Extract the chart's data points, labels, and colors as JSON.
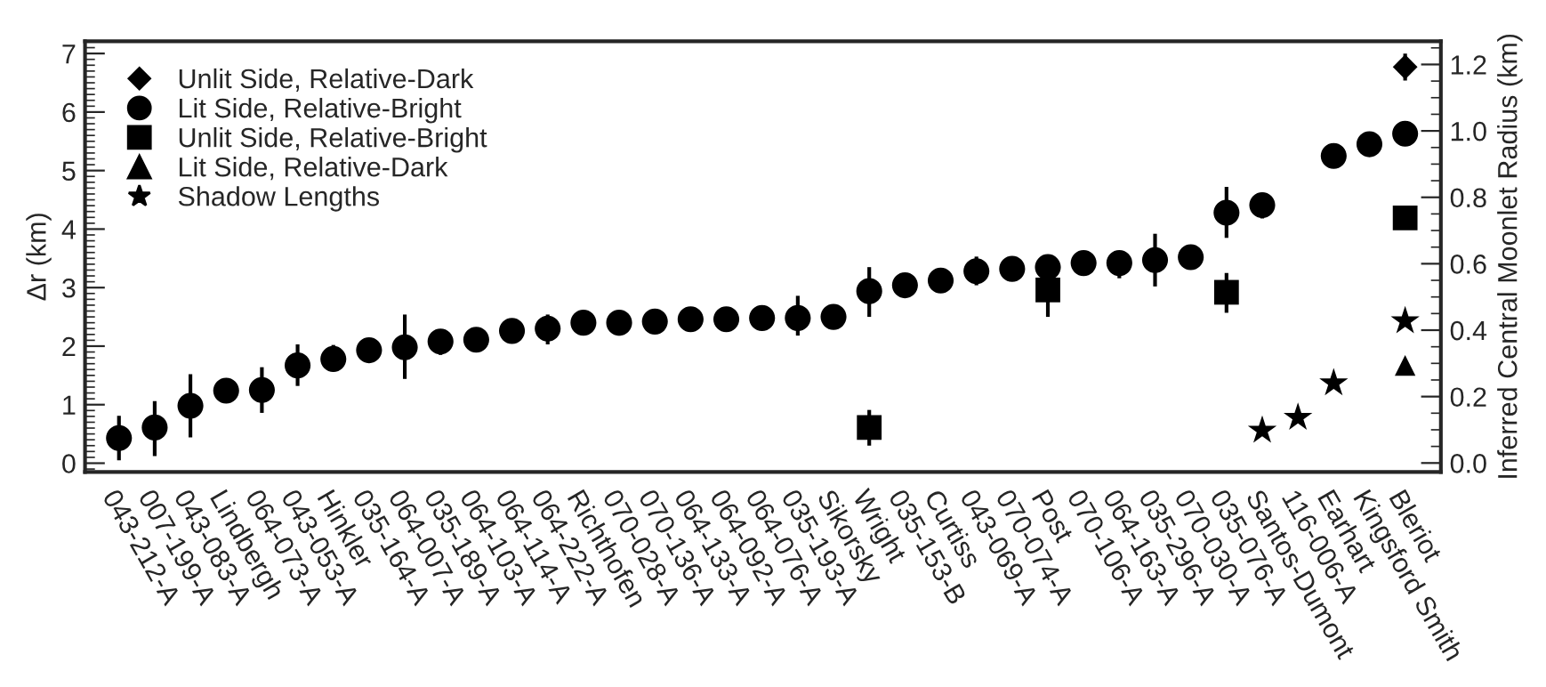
{
  "chart_data": {
    "type": "scatter",
    "ylabel": "Δr (km)",
    "y2label": "Inferred Central Moonlet Radius (km)",
    "categories": [
      "043-212-A",
      "007-199-A",
      "043-083-A",
      "Lindbergh",
      "064-073-A",
      "043-053-A",
      "Hinkler",
      "035-164-A",
      "064-007-A",
      "035-189-A",
      "064-103-A",
      "064-114-A",
      "064-222-A",
      "Richthofen",
      "070-028-A",
      "070-136-A",
      "064-133-A",
      "064-092-A",
      "064-076-A",
      "035-193-A",
      "Sikorsky",
      "Wright",
      "035-153-B",
      "Curtiss",
      "043-069-A",
      "070-074-A",
      "Post",
      "070-106-A",
      "064-163-A",
      "035-296-A",
      "070-030-A",
      "035-076-A",
      "Santos-Dumont",
      "116-006-A",
      "Earhart",
      "Kingsford Smith",
      "Bleriot"
    ],
    "ylim": [
      -0.15,
      7.21
    ],
    "yticks": [
      0,
      1,
      2,
      3,
      4,
      5,
      6,
      7
    ],
    "y2lim": [
      -0.027,
      1.27
    ],
    "y2ticks": [
      {
        "value": 0,
        "label": "0.0"
      },
      {
        "value": 0.2,
        "label": "0.2"
      },
      {
        "value": 0.4,
        "label": "0.4"
      },
      {
        "value": 0.6,
        "label": "0.6"
      },
      {
        "value": 0.8,
        "label": "0.8"
      },
      {
        "value": 1.0,
        "label": "1.0"
      },
      {
        "value": 1.2,
        "label": "1.2"
      }
    ],
    "legend": "top left",
    "grid": false,
    "series": [
      {
        "name": "Unlit Side, Relative-Dark",
        "color": "#000000",
        "marker": "diamond",
        "values": [
          null,
          null,
          null,
          null,
          null,
          null,
          null,
          null,
          null,
          null,
          null,
          null,
          null,
          null,
          null,
          null,
          null,
          null,
          null,
          null,
          null,
          null,
          null,
          null,
          null,
          null,
          null,
          null,
          null,
          null,
          null,
          null,
          null,
          null,
          null,
          null,
          6.77
        ],
        "errors": [
          null,
          null,
          null,
          null,
          null,
          null,
          null,
          null,
          null,
          null,
          null,
          null,
          null,
          null,
          null,
          null,
          null,
          null,
          null,
          null,
          null,
          null,
          null,
          null,
          null,
          null,
          null,
          null,
          null,
          null,
          null,
          null,
          null,
          null,
          null,
          null,
          [
            6.54,
            7.0
          ]
        ]
      },
      {
        "name": "Lit Side, Relative-Bright",
        "color": "#000000",
        "marker": "circle",
        "values": [
          0.43,
          0.61,
          0.98,
          1.24,
          1.25,
          1.67,
          1.78,
          1.93,
          1.98,
          2.08,
          2.11,
          2.26,
          2.3,
          2.4,
          2.4,
          2.42,
          2.46,
          2.46,
          2.48,
          2.48,
          2.5,
          2.94,
          3.04,
          3.12,
          3.28,
          3.32,
          3.35,
          3.42,
          3.42,
          3.47,
          3.52,
          4.28,
          4.41,
          null,
          5.25,
          5.45,
          5.63
        ],
        "errors": [
          [
            0.05,
            0.81
          ],
          [
            0.12,
            1.06
          ],
          [
            0.44,
            1.52
          ],
          null,
          [
            0.86,
            1.64
          ],
          [
            1.32,
            2.03
          ],
          [
            1.57,
            2.02
          ],
          null,
          [
            1.44,
            2.54
          ],
          [
            1.85,
            2.25
          ],
          null,
          null,
          [
            2.03,
            2.54
          ],
          null,
          [
            2.18,
            2.59
          ],
          null,
          null,
          null,
          null,
          [
            2.18,
            2.86
          ],
          [
            2.33,
            2.69
          ],
          [
            2.5,
            3.35
          ],
          null,
          null,
          [
            3.04,
            3.53
          ],
          null,
          null,
          null,
          [
            3.16,
            3.6
          ],
          [
            3.02,
            3.92
          ],
          null,
          [
            3.85,
            4.72
          ],
          [
            4.18,
            4.62
          ],
          null,
          null,
          null,
          null
        ]
      },
      {
        "name": "Unlit Side, Relative-Bright",
        "color": "#000000",
        "marker": "square",
        "values": [
          null,
          null,
          null,
          null,
          null,
          null,
          null,
          null,
          null,
          null,
          null,
          null,
          null,
          null,
          null,
          null,
          null,
          null,
          null,
          null,
          null,
          0.61,
          null,
          null,
          null,
          null,
          2.96,
          null,
          null,
          null,
          null,
          2.92,
          null,
          null,
          null,
          null,
          4.19
        ],
        "errors": [
          null,
          null,
          null,
          null,
          null,
          null,
          null,
          null,
          null,
          null,
          null,
          null,
          null,
          null,
          null,
          null,
          null,
          null,
          null,
          null,
          null,
          [
            0.3,
            0.91
          ],
          null,
          null,
          null,
          null,
          [
            2.5,
            2.96
          ],
          null,
          null,
          null,
          null,
          [
            2.57,
            3.25
          ],
          null,
          null,
          null,
          null,
          null
        ]
      },
      {
        "name": "Lit Side, Relative-Dark",
        "color": "#000000",
        "marker": "triangle",
        "values": [
          null,
          null,
          null,
          null,
          null,
          null,
          null,
          null,
          null,
          null,
          null,
          null,
          null,
          null,
          null,
          null,
          null,
          null,
          null,
          null,
          null,
          null,
          null,
          null,
          null,
          null,
          null,
          null,
          null,
          null,
          null,
          null,
          null,
          null,
          null,
          null,
          1.67
        ]
      },
      {
        "name": "Shadow Lengths",
        "color": "#000000",
        "marker": "star",
        "values": [
          null,
          null,
          null,
          null,
          null,
          null,
          null,
          null,
          null,
          null,
          null,
          null,
          null,
          null,
          null,
          null,
          null,
          null,
          null,
          null,
          null,
          null,
          null,
          null,
          null,
          null,
          null,
          null,
          null,
          null,
          null,
          null,
          0.56,
          0.78,
          1.37,
          null,
          2.43
        ]
      }
    ]
  }
}
